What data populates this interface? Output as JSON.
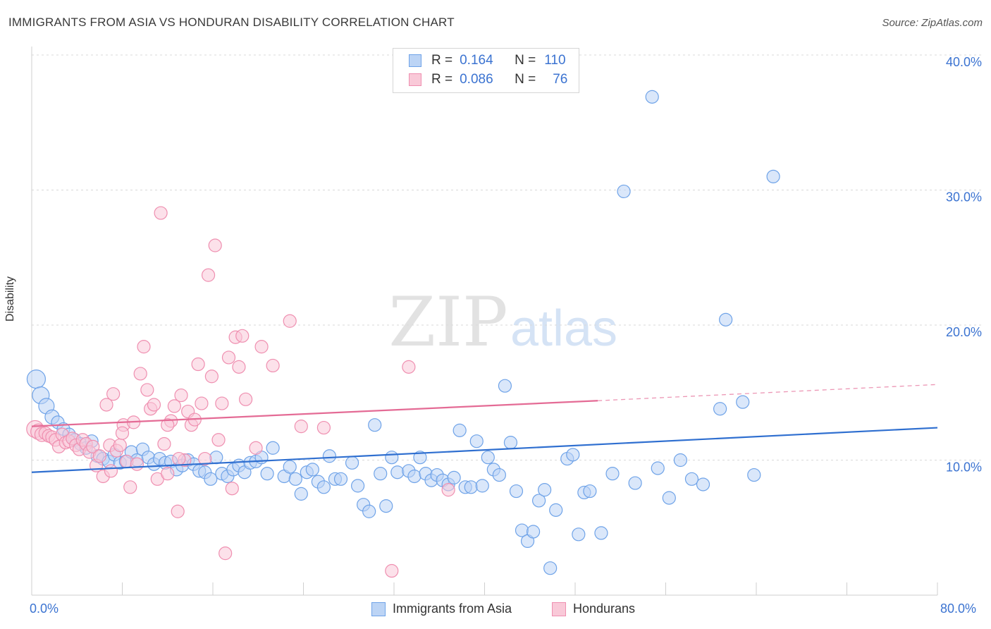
{
  "title": "IMMIGRANTS FROM ASIA VS HONDURAN DISABILITY CORRELATION CHART",
  "source": "Source: ZipAtlas.com",
  "watermark": {
    "zip": "ZIP",
    "atlas": "atlas"
  },
  "legend": {
    "r_label": "R =",
    "n_label": "N =",
    "rows": [
      {
        "r": "0.164",
        "n": "110",
        "color": "#6fa3e8",
        "fill": "#bcd4f5"
      },
      {
        "r": "0.086",
        "n": "76",
        "color": "#ef8fb0",
        "fill": "#f9c9d8"
      }
    ]
  },
  "bottom_legend": [
    {
      "label": "Immigrants from Asia"
    },
    {
      "label": "Hondurans"
    }
  ],
  "chart_data": {
    "type": "scatter",
    "title": "IMMIGRANTS FROM ASIA VS HONDURAN DISABILITY CORRELATION CHART",
    "xlabel": "",
    "ylabel": "Disability",
    "xlim": [
      0,
      80
    ],
    "ylim": [
      0,
      40
    ],
    "x_tick_labels": [
      "0.0%",
      "80.0%"
    ],
    "y_tick_labels": [
      "10.0%",
      "20.0%",
      "30.0%",
      "40.0%"
    ],
    "y_ticks": [
      10,
      20,
      30,
      40
    ],
    "grid": true,
    "series": [
      {
        "name": "Immigrants from Asia",
        "color": "#6fa3e8",
        "trend_color": "#2f6fd0",
        "trend": {
          "x": [
            0,
            80
          ],
          "y": [
            9.1,
            12.4
          ]
        },
        "points": [
          [
            0.4,
            16.0
          ],
          [
            0.8,
            14.8
          ],
          [
            1.3,
            14.0
          ],
          [
            1.8,
            13.2
          ],
          [
            2.3,
            12.8
          ],
          [
            2.8,
            12.3
          ],
          [
            3.3,
            11.9
          ],
          [
            3.8,
            11.5
          ],
          [
            4.3,
            11.2
          ],
          [
            4.8,
            10.9
          ],
          [
            5.3,
            11.4
          ],
          [
            5.8,
            10.3
          ],
          [
            6.3,
            10.1
          ],
          [
            6.8,
            9.9
          ],
          [
            7.3,
            10.4
          ],
          [
            7.8,
            9.8
          ],
          [
            8.3,
            9.9
          ],
          [
            8.8,
            10.6
          ],
          [
            9.3,
            10.0
          ],
          [
            9.8,
            10.8
          ],
          [
            10.3,
            10.2
          ],
          [
            10.8,
            9.7
          ],
          [
            11.3,
            10.1
          ],
          [
            11.8,
            9.8
          ],
          [
            12.3,
            9.9
          ],
          [
            12.8,
            9.3
          ],
          [
            13.3,
            9.6
          ],
          [
            13.8,
            10.0
          ],
          [
            14.3,
            9.7
          ],
          [
            14.8,
            9.2
          ],
          [
            15.3,
            9.1
          ],
          [
            15.8,
            8.6
          ],
          [
            16.3,
            10.2
          ],
          [
            16.8,
            9.0
          ],
          [
            17.3,
            8.8
          ],
          [
            17.8,
            9.3
          ],
          [
            18.3,
            9.6
          ],
          [
            18.8,
            9.1
          ],
          [
            19.3,
            9.8
          ],
          [
            19.8,
            9.9
          ],
          [
            20.3,
            10.2
          ],
          [
            20.8,
            9.0
          ],
          [
            21.3,
            10.9
          ],
          [
            22.3,
            8.8
          ],
          [
            22.8,
            9.5
          ],
          [
            23.3,
            8.6
          ],
          [
            23.8,
            7.5
          ],
          [
            24.3,
            9.1
          ],
          [
            24.8,
            9.3
          ],
          [
            25.3,
            8.4
          ],
          [
            25.8,
            8.0
          ],
          [
            26.3,
            10.3
          ],
          [
            26.8,
            8.6
          ],
          [
            27.3,
            8.6
          ],
          [
            28.3,
            9.8
          ],
          [
            28.8,
            8.1
          ],
          [
            29.3,
            6.7
          ],
          [
            29.8,
            6.2
          ],
          [
            30.3,
            12.6
          ],
          [
            30.8,
            9.0
          ],
          [
            31.3,
            6.6
          ],
          [
            31.8,
            10.2
          ],
          [
            32.3,
            9.1
          ],
          [
            33.3,
            9.2
          ],
          [
            33.8,
            8.8
          ],
          [
            34.3,
            10.2
          ],
          [
            34.8,
            9.0
          ],
          [
            35.3,
            8.5
          ],
          [
            35.8,
            8.9
          ],
          [
            36.3,
            8.5
          ],
          [
            36.8,
            8.2
          ],
          [
            37.3,
            8.7
          ],
          [
            37.8,
            12.2
          ],
          [
            38.3,
            8.0
          ],
          [
            38.8,
            8.0
          ],
          [
            39.3,
            11.4
          ],
          [
            39.8,
            8.1
          ],
          [
            40.3,
            10.2
          ],
          [
            40.8,
            9.3
          ],
          [
            41.3,
            8.9
          ],
          [
            41.8,
            15.5
          ],
          [
            42.3,
            11.3
          ],
          [
            42.8,
            7.7
          ],
          [
            43.3,
            4.8
          ],
          [
            43.8,
            4.0
          ],
          [
            44.3,
            4.7
          ],
          [
            44.8,
            7.0
          ],
          [
            45.3,
            7.8
          ],
          [
            45.8,
            2.0
          ],
          [
            46.3,
            6.3
          ],
          [
            47.3,
            10.1
          ],
          [
            47.8,
            10.4
          ],
          [
            48.3,
            4.5
          ],
          [
            48.8,
            7.6
          ],
          [
            49.3,
            7.7
          ],
          [
            50.3,
            4.6
          ],
          [
            51.3,
            9.0
          ],
          [
            52.3,
            29.9
          ],
          [
            53.3,
            8.3
          ],
          [
            54.8,
            36.9
          ],
          [
            55.3,
            9.4
          ],
          [
            56.3,
            7.2
          ],
          [
            57.3,
            10.0
          ],
          [
            58.3,
            8.6
          ],
          [
            59.3,
            8.2
          ],
          [
            60.8,
            13.8
          ],
          [
            61.3,
            20.4
          ],
          [
            62.8,
            14.3
          ],
          [
            63.8,
            8.9
          ],
          [
            65.5,
            31.0
          ]
        ]
      },
      {
        "name": "Hondurans",
        "color": "#ef8fb0",
        "trend_color": "#e46b95",
        "trend": {
          "x": [
            0,
            50
          ],
          "y": [
            12.5,
            14.4
          ]
        },
        "trend_dashed": {
          "x": [
            50,
            80
          ],
          "y": [
            14.4,
            15.6
          ]
        },
        "points": [
          [
            0.3,
            12.3
          ],
          [
            0.6,
            12.1
          ],
          [
            0.9,
            11.9
          ],
          [
            1.2,
            12.0
          ],
          [
            1.5,
            11.8
          ],
          [
            1.8,
            11.7
          ],
          [
            2.1,
            11.5
          ],
          [
            2.4,
            11.0
          ],
          [
            2.7,
            11.9
          ],
          [
            3.0,
            11.3
          ],
          [
            3.3,
            11.4
          ],
          [
            3.6,
            11.6
          ],
          [
            3.9,
            11.1
          ],
          [
            4.2,
            10.8
          ],
          [
            4.5,
            11.5
          ],
          [
            4.8,
            11.2
          ],
          [
            5.1,
            10.6
          ],
          [
            5.4,
            11.0
          ],
          [
            5.7,
            9.6
          ],
          [
            6.0,
            10.3
          ],
          [
            6.3,
            8.8
          ],
          [
            6.6,
            14.1
          ],
          [
            6.9,
            11.1
          ],
          [
            7.2,
            14.9
          ],
          [
            7.5,
            10.7
          ],
          [
            7.8,
            11.1
          ],
          [
            8.1,
            12.6
          ],
          [
            8.4,
            9.9
          ],
          [
            8.7,
            8.0
          ],
          [
            9.0,
            12.8
          ],
          [
            9.3,
            9.7
          ],
          [
            9.6,
            16.4
          ],
          [
            9.9,
            18.4
          ],
          [
            10.2,
            15.2
          ],
          [
            10.5,
            13.8
          ],
          [
            10.8,
            14.1
          ],
          [
            11.1,
            8.6
          ],
          [
            11.4,
            28.3
          ],
          [
            11.7,
            11.2
          ],
          [
            12.0,
            9.0
          ],
          [
            12.3,
            12.9
          ],
          [
            12.6,
            14.0
          ],
          [
            12.9,
            6.2
          ],
          [
            13.2,
            14.8
          ],
          [
            13.5,
            10.0
          ],
          [
            13.8,
            13.6
          ],
          [
            14.1,
            12.6
          ],
          [
            14.4,
            13.0
          ],
          [
            14.7,
            17.1
          ],
          [
            15.0,
            14.2
          ],
          [
            15.3,
            10.1
          ],
          [
            15.6,
            23.7
          ],
          [
            15.9,
            16.2
          ],
          [
            16.2,
            25.9
          ],
          [
            16.5,
            11.5
          ],
          [
            16.8,
            14.2
          ],
          [
            17.1,
            3.1
          ],
          [
            17.4,
            17.6
          ],
          [
            17.7,
            7.9
          ],
          [
            18.0,
            19.1
          ],
          [
            18.3,
            16.9
          ],
          [
            18.6,
            19.2
          ],
          [
            18.9,
            14.5
          ],
          [
            19.8,
            10.9
          ],
          [
            20.3,
            18.4
          ],
          [
            21.3,
            17.0
          ],
          [
            22.8,
            20.3
          ],
          [
            23.8,
            12.5
          ],
          [
            25.8,
            12.4
          ],
          [
            31.8,
            1.8
          ],
          [
            33.3,
            16.9
          ],
          [
            36.8,
            7.8
          ],
          [
            7.0,
            9.2
          ],
          [
            8.0,
            12.0
          ],
          [
            12.0,
            12.6
          ],
          [
            13.0,
            10.1
          ]
        ]
      }
    ]
  }
}
